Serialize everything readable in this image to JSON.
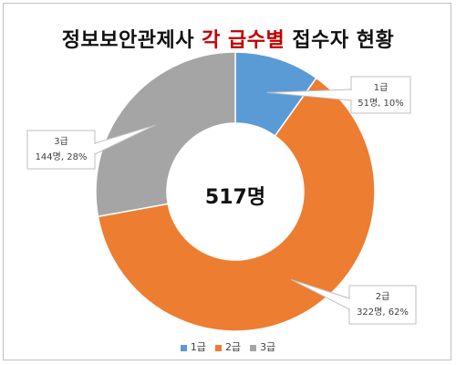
{
  "title": {
    "part1": "정보보안관제사 ",
    "part2": "각 급수별",
    "part3": " 접수자 현황"
  },
  "chart_data": {
    "type": "pie",
    "variant": "doughnut",
    "title": "정보보안관제사 각 급수별 접수자 현황",
    "center_label": "517명",
    "legend_position": "bottom",
    "slices": [
      {
        "name": "1급",
        "value": 51,
        "value_label": "51명",
        "percent_label": "10%",
        "color": "#5b9bd5"
      },
      {
        "name": "2급",
        "value": 322,
        "value_label": "322명",
        "percent_label": "62%",
        "color": "#ed7d31"
      },
      {
        "name": "3급",
        "value": 144,
        "value_label": "144명",
        "percent_label": "28%",
        "color": "#a5a5a5"
      }
    ]
  }
}
